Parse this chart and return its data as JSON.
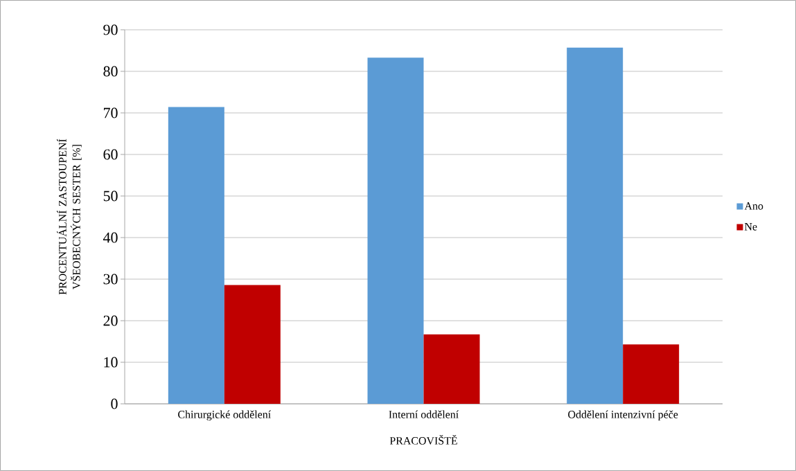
{
  "chart_data": {
    "type": "bar",
    "xlabel": "PRACOVIŠTĚ",
    "ylabel": "PROCENTUÁLNÍ ZASTOUPENÍ VŠEOBECNÝCH SESTER [%]",
    "categories": [
      "Chirurgické oddělení",
      "Interní oddělení",
      "Oddělení intenzivní péče"
    ],
    "series": [
      {
        "name": "Ano",
        "color": "#5b9bd5",
        "values": [
          71.4,
          83.3,
          85.7
        ]
      },
      {
        "name": "Ne",
        "color": "#c00000",
        "values": [
          28.6,
          16.7,
          14.3
        ]
      }
    ],
    "ylim": [
      0,
      90
    ],
    "yticks": [
      0,
      10,
      20,
      30,
      40,
      50,
      60,
      70,
      80,
      90
    ],
    "grid": "y",
    "legend": "right"
  }
}
